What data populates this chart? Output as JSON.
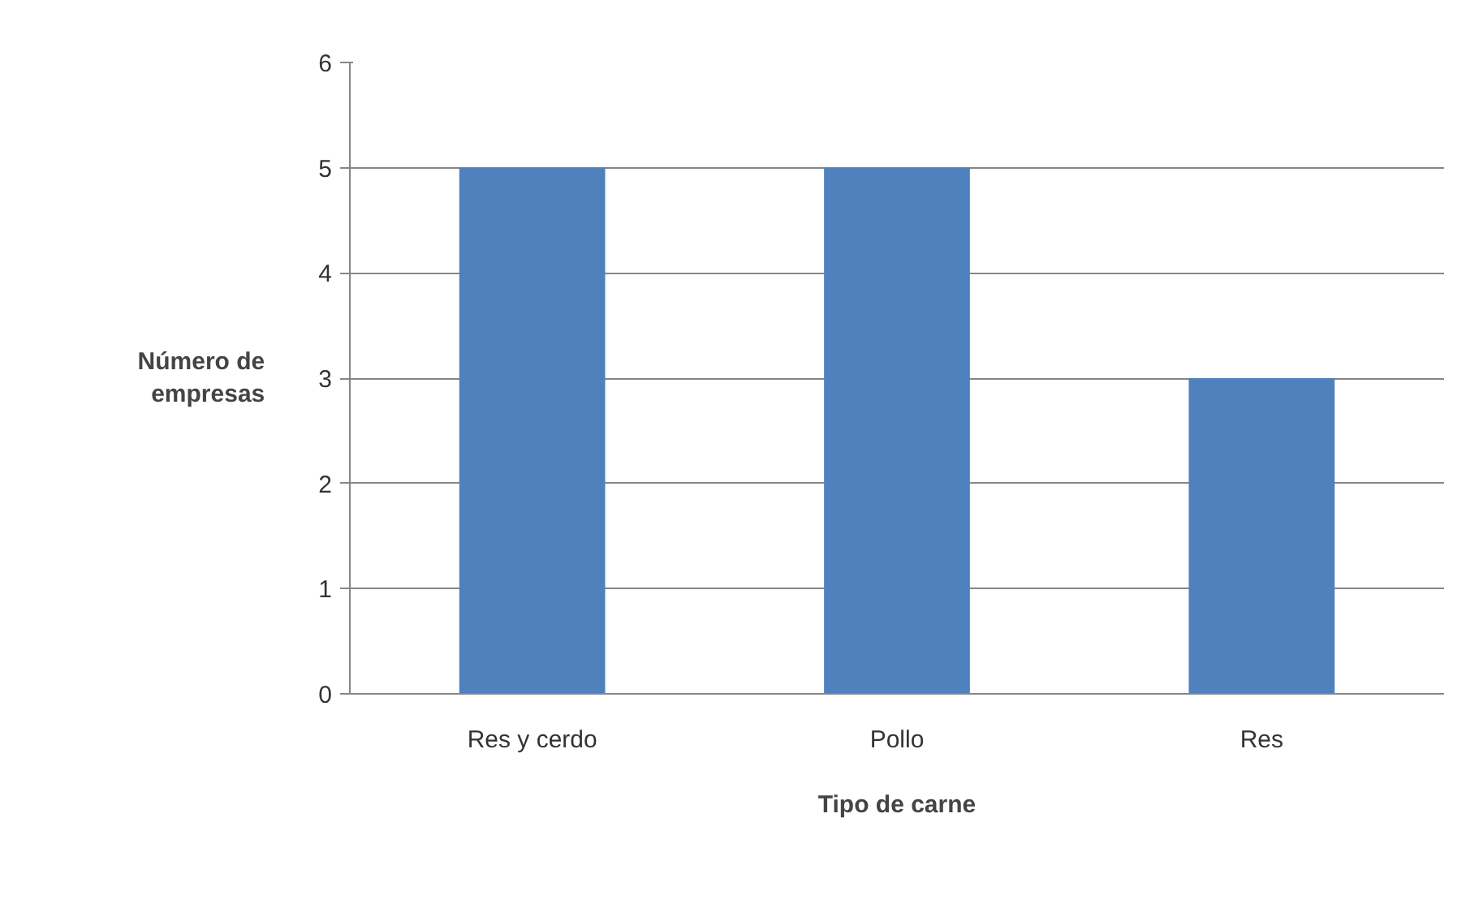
{
  "chart_data": {
    "type": "bar",
    "xlabel": "Tipo de carne",
    "ylabel": "Número de empresas",
    "categories": [
      "Res y cerdo",
      "Pollo",
      "Res"
    ],
    "values": [
      5,
      5,
      3
    ],
    "color": "#4f81bd",
    "ylim": [
      0,
      6
    ],
    "yticks": [
      0,
      1,
      2,
      3,
      4,
      5,
      6
    ],
    "grid": "y"
  }
}
